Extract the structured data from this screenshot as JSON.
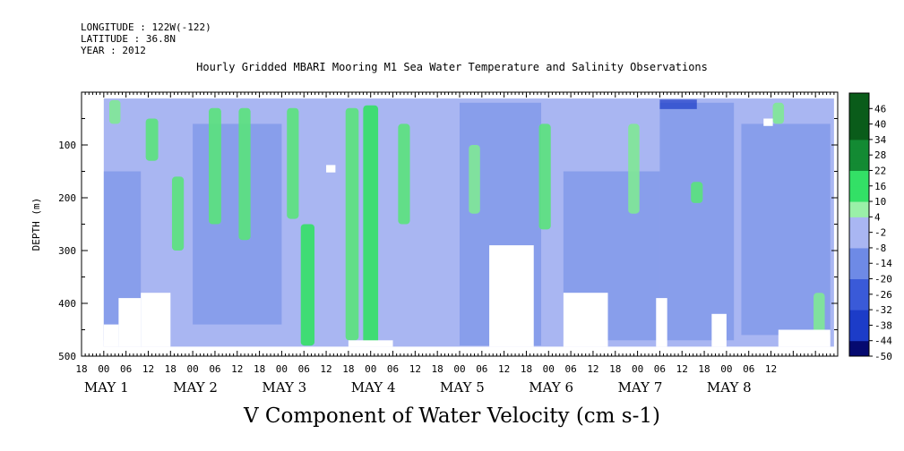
{
  "header": {
    "longitude": "LONGITUDE : 122W(-122)",
    "latitude": "LATITUDE : 36.8N",
    "year": "YEAR : 2012",
    "title": "Hourly Gridded MBARI Mooring M1 Sea Water Temperature and Salinity Observations"
  },
  "chart_data": {
    "type": "heatmap",
    "title": "Hourly Gridded MBARI Mooring M1 Sea Water Temperature and Salinity Observations",
    "bottom_title": "V Component of Water Velocity (cm s-1)",
    "xlabel": "",
    "ylabel": "DEPTH (m)",
    "y_ticks": [
      100,
      200,
      300,
      400,
      500
    ],
    "ylim": [
      500,
      0
    ],
    "x_range_hours": [
      -6,
      198
    ],
    "hour_ticks": [
      "18",
      "00",
      "06",
      "12",
      "18",
      "00",
      "06",
      "12",
      "18",
      "00",
      "06",
      "12",
      "18",
      "00",
      "06",
      "12",
      "18",
      "00",
      "06",
      "12",
      "18",
      "00",
      "06",
      "12",
      "18",
      "00",
      "06",
      "12",
      "18",
      "00",
      "06",
      "12"
    ],
    "day_labels": [
      "MAY 1",
      "MAY 2",
      "MAY 3",
      "MAY 4",
      "MAY 5",
      "MAY 6",
      "MAY 7",
      "MAY 8"
    ],
    "colorbar_labels": [
      "46",
      "40",
      "34",
      "28",
      "22",
      "16",
      "10",
      "4",
      "-2",
      "-8",
      "-14",
      "-20",
      "-26",
      "-32",
      "-38",
      "-44",
      "-50"
    ],
    "colorbar_range": [
      -50,
      52
    ],
    "colors": {
      "strong_positive": "#0a5c1a",
      "positive": "#33e066",
      "weak_positive": "#9af0a8",
      "near_zero": "#a9b6f2",
      "negative": "#6e8ae6",
      "strong_negative": "#1c3cc8",
      "extreme_negative": "#050a70"
    },
    "positive_bands": [
      {
        "hour": 3,
        "depth_top": 15,
        "depth_bottom": 60,
        "value": 10
      },
      {
        "hour": 13,
        "depth_top": 50,
        "depth_bottom": 130,
        "value": 14
      },
      {
        "hour": 20,
        "depth_top": 160,
        "depth_bottom": 300,
        "value": 12
      },
      {
        "hour": 30,
        "depth_top": 30,
        "depth_bottom": 250,
        "value": 14
      },
      {
        "hour": 38,
        "depth_top": 30,
        "depth_bottom": 280,
        "value": 12
      },
      {
        "hour": 51,
        "depth_top": 30,
        "depth_bottom": 240,
        "value": 12
      },
      {
        "hour": 55,
        "depth_top": 250,
        "depth_bottom": 480,
        "value": 18
      },
      {
        "hour": 67,
        "depth_top": 30,
        "depth_bottom": 470,
        "value": 16
      },
      {
        "hour": 72,
        "depth_top": 25,
        "depth_bottom": 480,
        "value": 22
      },
      {
        "hour": 81,
        "depth_top": 60,
        "depth_bottom": 250,
        "value": 12
      },
      {
        "hour": 100,
        "depth_top": 100,
        "depth_bottom": 230,
        "value": 10
      },
      {
        "hour": 119,
        "depth_top": 60,
        "depth_bottom": 260,
        "value": 12
      },
      {
        "hour": 143,
        "depth_top": 60,
        "depth_bottom": 230,
        "value": 10
      },
      {
        "hour": 160,
        "depth_top": 170,
        "depth_bottom": 210,
        "value": 12
      },
      {
        "hour": 182,
        "depth_top": 20,
        "depth_bottom": 60,
        "value": 10
      },
      {
        "hour": 193,
        "depth_top": 380,
        "depth_bottom": 460,
        "value": 10
      }
    ]
  }
}
